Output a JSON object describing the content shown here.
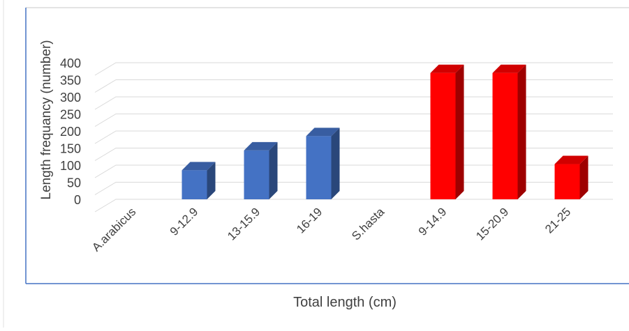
{
  "chart_data": {
    "type": "bar",
    "title": "",
    "xlabel": "Total length (cm)",
    "ylabel": "Length frequancy (number)",
    "ylim": [
      0,
      400
    ],
    "yticks": [
      0,
      50,
      100,
      150,
      200,
      250,
      300,
      350,
      400
    ],
    "grid": true,
    "style": "3d-column",
    "categories": [
      "A.arabicus",
      "9-12.9",
      "13-15.9",
      "16-19",
      "S.hasta",
      "9-14.9",
      "15-20.9",
      "21-25"
    ],
    "values": [
      0,
      85,
      143,
      185,
      0,
      370,
      370,
      103
    ],
    "colors": [
      "#4472c4",
      "#4472c4",
      "#4472c4",
      "#4472c4",
      "#ff0000",
      "#ff0000",
      "#ff0000",
      "#ff0000"
    ]
  }
}
